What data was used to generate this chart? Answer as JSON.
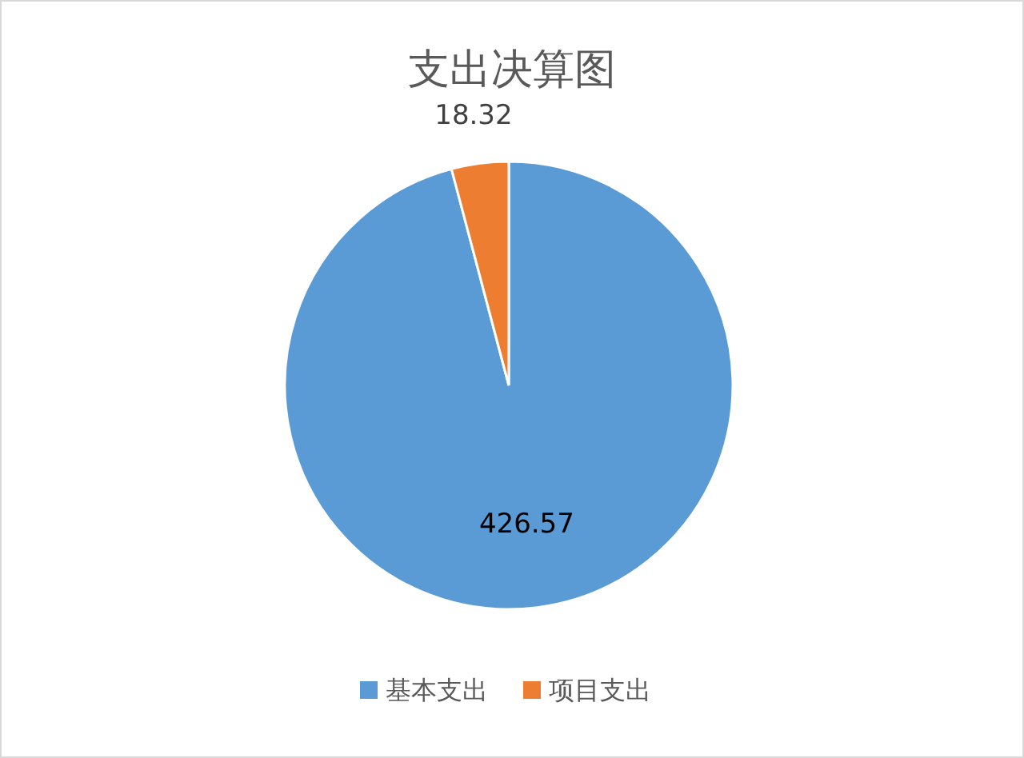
{
  "chart_data": {
    "type": "pie",
    "title": "支出决算图",
    "categories": [
      "基本支出",
      "项目支出"
    ],
    "values": [
      426.57,
      18.32
    ],
    "colors": [
      "#5b9bd5",
      "#ed7d31"
    ],
    "data_labels": true,
    "legend": "bottom"
  }
}
